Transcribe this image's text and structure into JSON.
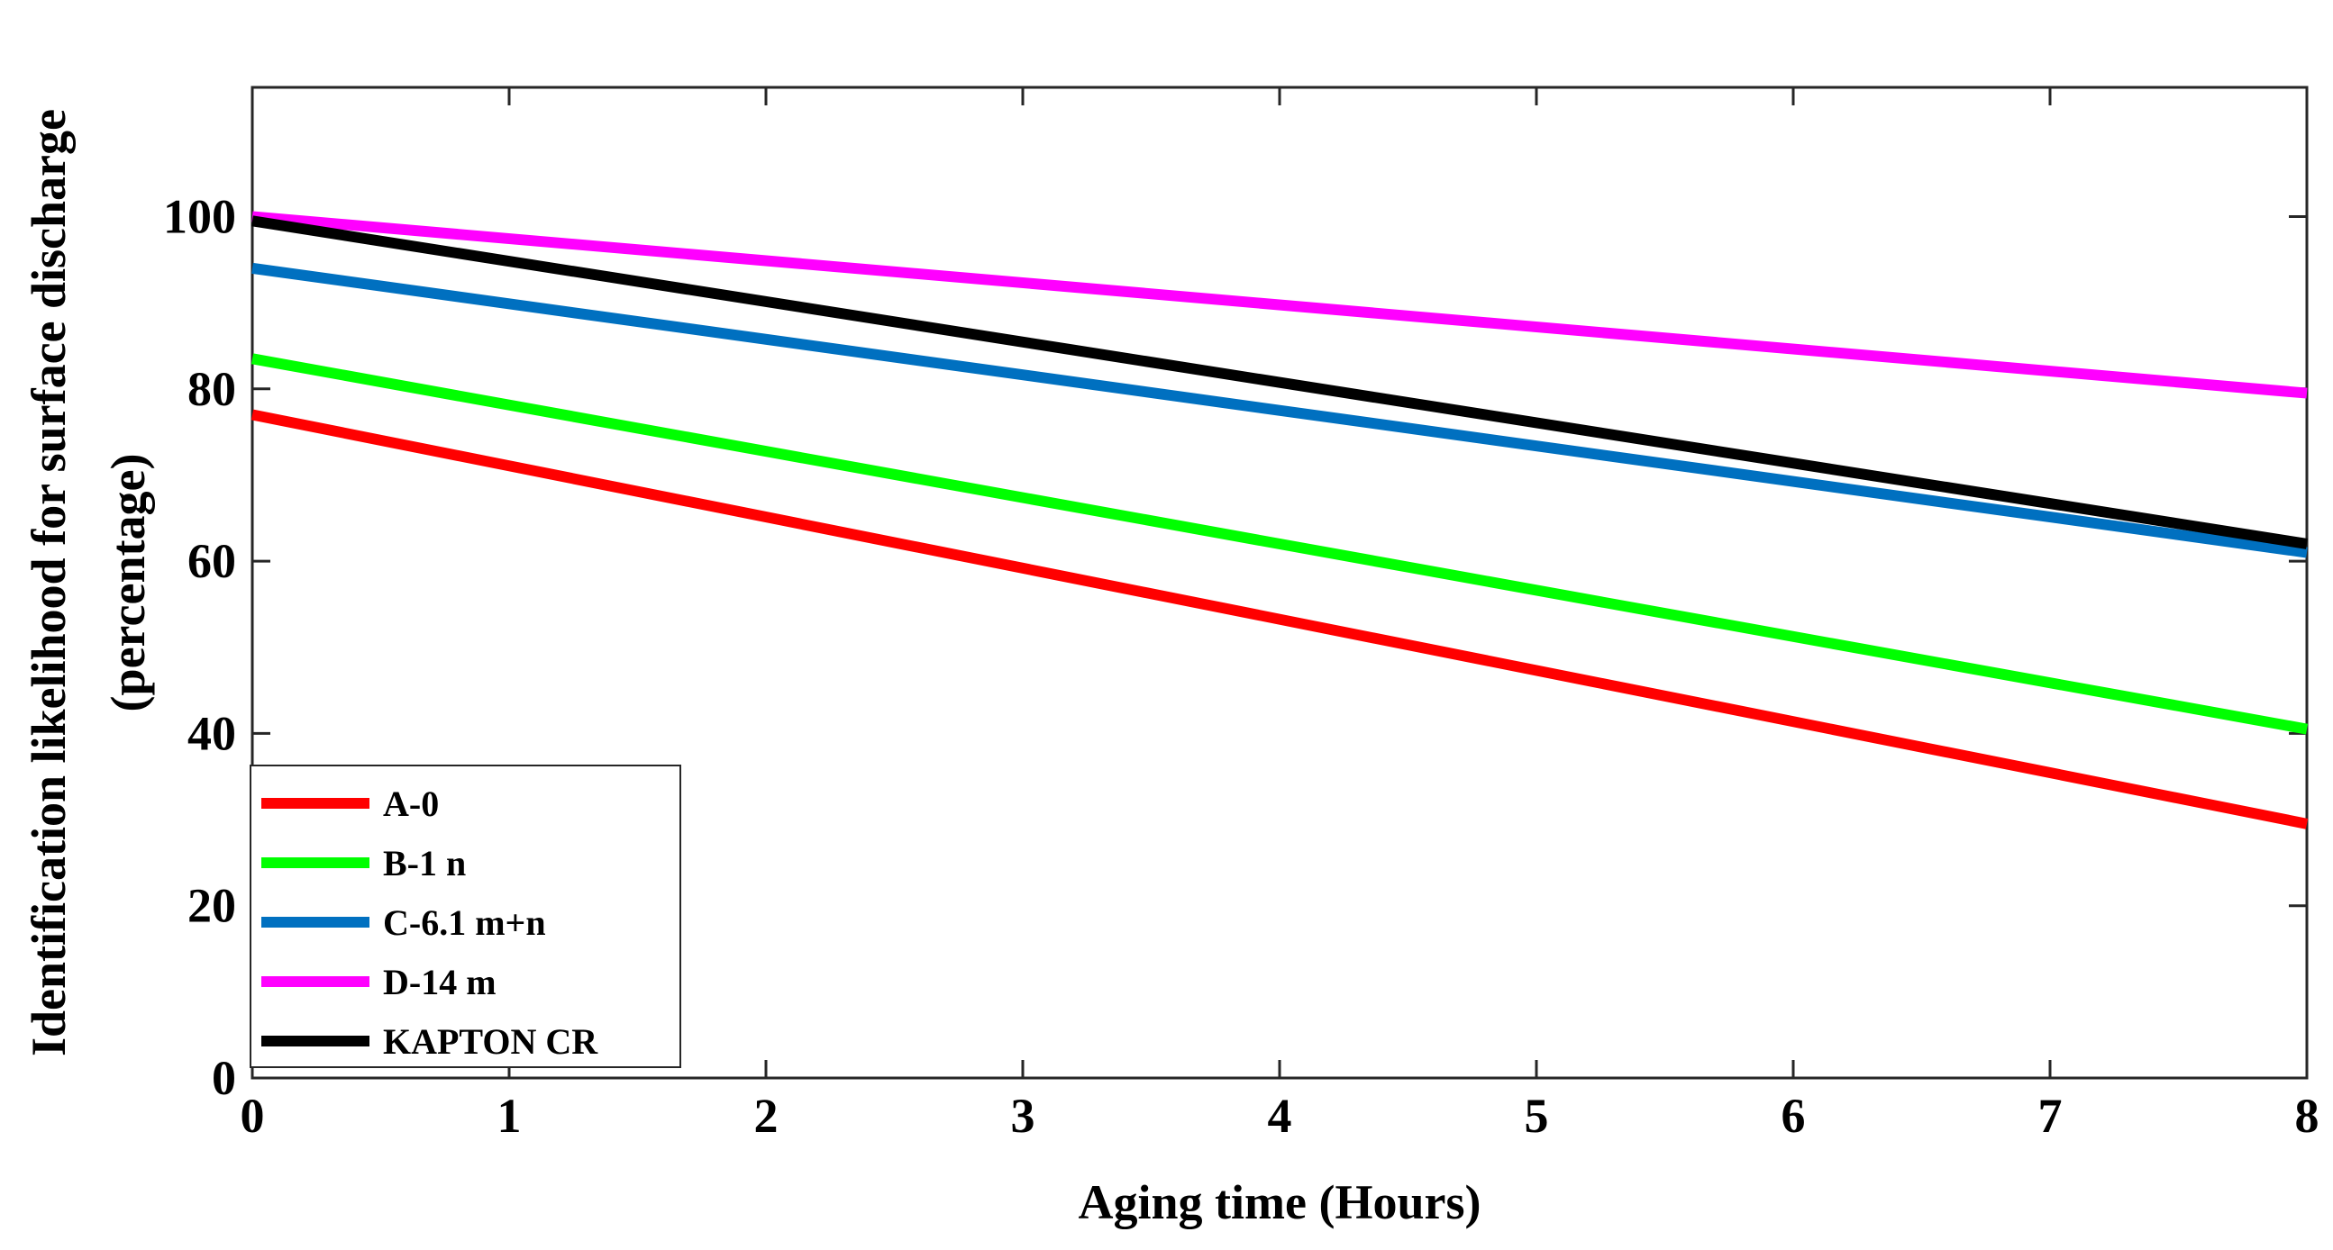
{
  "chart_data": {
    "type": "line",
    "title": "",
    "xlabel": "Aging time (Hours)",
    "ylabel_line1": "Identification likelihood for surface discharge",
    "ylabel_line2": "(percentage)",
    "xlim": [
      0,
      8
    ],
    "ylim": [
      0,
      115
    ],
    "xticks": [
      0,
      1,
      2,
      3,
      4,
      5,
      6,
      7,
      8
    ],
    "yticks": [
      0,
      20,
      40,
      60,
      80,
      100
    ],
    "grid": false,
    "legend_position": "bottom-left",
    "series": [
      {
        "name": "A-0",
        "color": "#ff0000",
        "x": [
          0,
          8
        ],
        "y": [
          77,
          29.5
        ]
      },
      {
        "name": "B-1 n",
        "color": "#00ff00",
        "x": [
          0,
          8
        ],
        "y": [
          83.5,
          40.5
        ]
      },
      {
        "name": "C-6.1 m+n",
        "color": "#0070c0",
        "x": [
          0,
          8
        ],
        "y": [
          94,
          61
        ]
      },
      {
        "name": "D-14 m",
        "color": "#ff00ff",
        "x": [
          0,
          8
        ],
        "y": [
          100,
          79.5
        ]
      },
      {
        "name": "KAPTON CR",
        "color": "#000000",
        "x": [
          0,
          8
        ],
        "y": [
          99.5,
          62
        ]
      }
    ]
  }
}
